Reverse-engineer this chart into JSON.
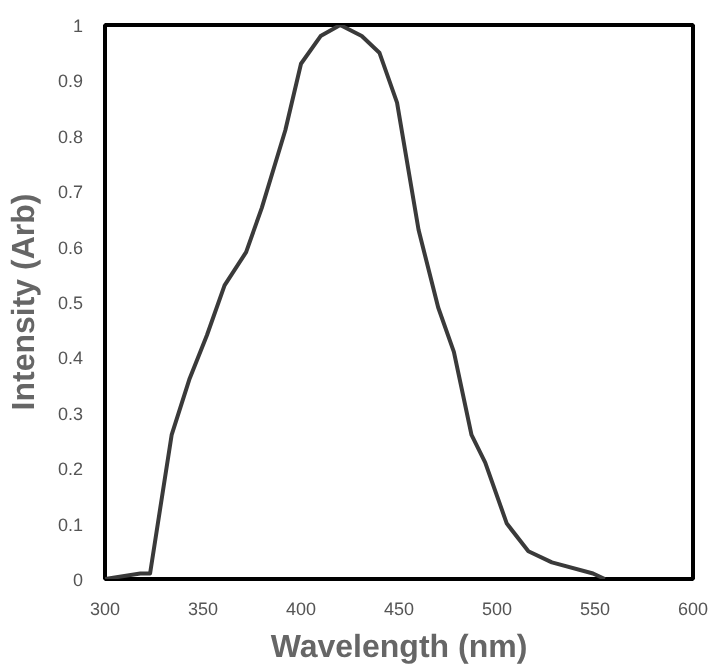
{
  "chart_data": {
    "type": "line",
    "xlabel": "Wavelength (nm)",
    "ylabel": "Intensity (Arb)",
    "xlim": [
      300,
      600
    ],
    "ylim": [
      0,
      1
    ],
    "xticks": [
      300,
      350,
      400,
      450,
      500,
      550,
      600
    ],
    "yticks": [
      0,
      {
        "value": 0.1,
        "label": "0.1"
      },
      {
        "value": 0.2,
        "label": "0.2"
      },
      {
        "value": 0.3,
        "label": "0.3"
      },
      {
        "value": 0.4,
        "label": "0.4"
      },
      {
        "value": 0.5,
        "label": "0.5"
      },
      {
        "value": 0.6,
        "label": "0.6"
      },
      {
        "value": 0.7,
        "label": "0.7"
      },
      {
        "value": 0.8,
        "label": "0.8"
      },
      {
        "value": 0.9,
        "label": "0.9"
      },
      1
    ],
    "grid": false,
    "series": [
      {
        "color": "#3a3a3a",
        "x": [
          300,
          318,
          323,
          334,
          343,
          352,
          361,
          372,
          380,
          392,
          400,
          410,
          420,
          431,
          440,
          449,
          460,
          470,
          478,
          487,
          494,
          505,
          516,
          528,
          549,
          555
        ],
        "values": [
          0,
          0.01,
          0.01,
          0.26,
          0.36,
          0.44,
          0.53,
          0.59,
          0.67,
          0.81,
          0.93,
          0.98,
          1.0,
          0.98,
          0.95,
          0.86,
          0.63,
          0.49,
          0.41,
          0.26,
          0.21,
          0.1,
          0.05,
          0.03,
          0.01,
          0
        ]
      }
    ]
  }
}
